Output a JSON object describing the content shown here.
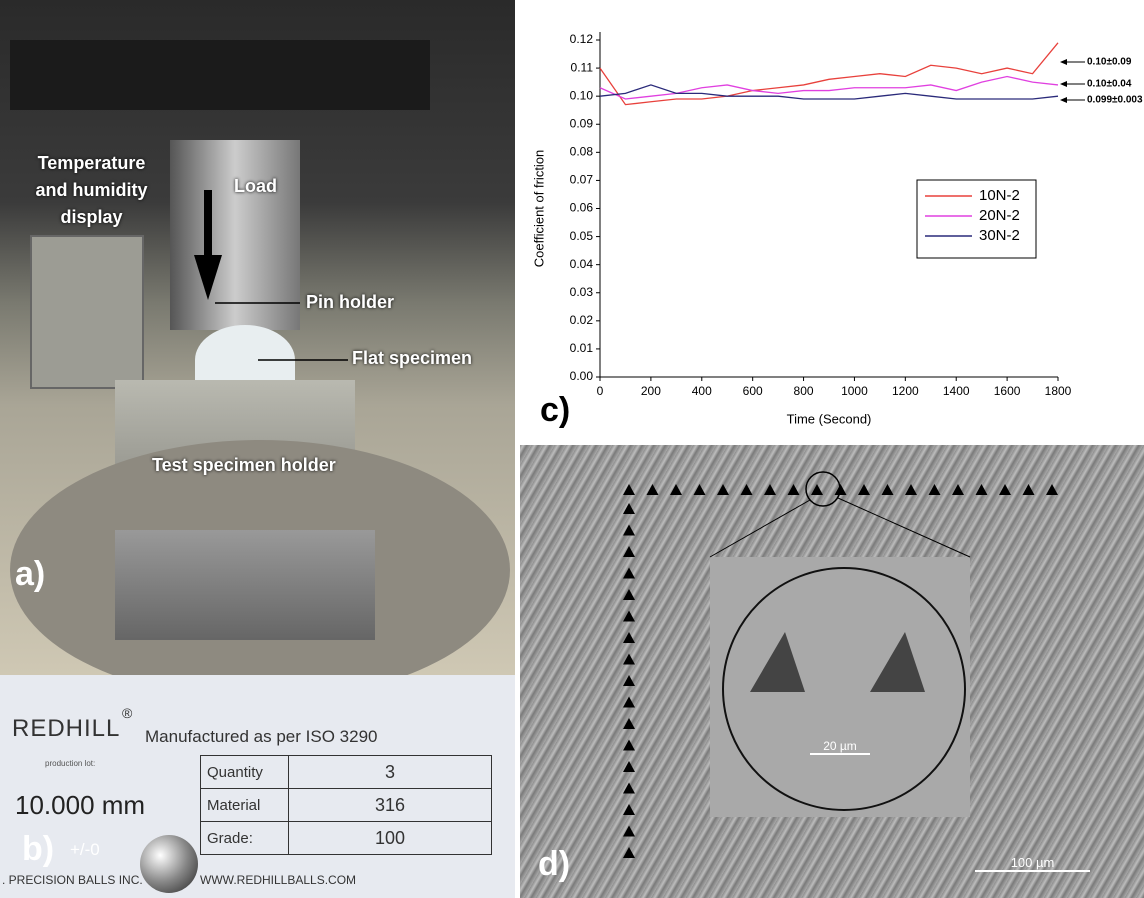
{
  "panel_a": {
    "label": "a)",
    "display_label": [
      "Temperature",
      "and humidity",
      "display"
    ],
    "load_label": "Load",
    "pin_label": "Pin holder",
    "flat_label": "Flat specimen",
    "holder_label": "Test specimen holder"
  },
  "panel_b": {
    "label": "b)",
    "brand": "REDHILL",
    "registered": "®",
    "subtitle": "Manufactured as per ISO 3290",
    "lot_label": "production lot:",
    "size": "10.000 mm",
    "tolerance": "+/-0",
    "table": {
      "rows": [
        [
          "Quantity",
          "3"
        ],
        [
          "Material",
          "316"
        ],
        [
          "Grade:",
          "100"
        ]
      ]
    },
    "footer_left": ". PRECISION BALLS INC.",
    "footer_right": "WWW.REDHILLBALLS.COM"
  },
  "panel_d": {
    "label": "d)",
    "inset_scale": "20 µm",
    "scale": "100 µm"
  },
  "chart_data": {
    "type": "line",
    "panel_label": "c)",
    "x_label": "Time (Second)",
    "y_label": "Coefficient of friction",
    "x": [
      0,
      100,
      200,
      300,
      400,
      500,
      600,
      700,
      800,
      900,
      1000,
      1100,
      1200,
      1300,
      1400,
      1500,
      1600,
      1700,
      1800
    ],
    "series": [
      {
        "name": "10N-2",
        "color": "#e8413c",
        "values": [
          0.11,
          0.097,
          0.098,
          0.099,
          0.099,
          0.1,
          0.102,
          0.103,
          0.104,
          0.106,
          0.107,
          0.108,
          0.107,
          0.111,
          0.11,
          0.108,
          0.11,
          0.108,
          0.119
        ]
      },
      {
        "name": "20N-2",
        "color": "#e040e0",
        "values": [
          0.103,
          0.099,
          0.1,
          0.101,
          0.103,
          0.104,
          0.102,
          0.101,
          0.102,
          0.102,
          0.103,
          0.103,
          0.103,
          0.104,
          0.102,
          0.105,
          0.107,
          0.105,
          0.104
        ]
      },
      {
        "name": "30N-2",
        "color": "#2a2a7a",
        "values": [
          0.1,
          0.101,
          0.104,
          0.101,
          0.101,
          0.1,
          0.1,
          0.1,
          0.099,
          0.099,
          0.099,
          0.1,
          0.101,
          0.1,
          0.099,
          0.099,
          0.099,
          0.099,
          0.1
        ]
      }
    ],
    "annotations": [
      "0.10±0.09",
      "0.10±0.04",
      "0.099±0.003"
    ],
    "xlim": [
      0,
      1800
    ],
    "xticks": [
      0,
      200,
      400,
      600,
      800,
      1000,
      1200,
      1400,
      1600,
      1800
    ],
    "ylim": [
      0,
      0.12
    ],
    "yticks": [
      {
        "value": 0,
        "label": "0.00"
      },
      0.01,
      0.02,
      0.03,
      0.04,
      0.05,
      0.06,
      0.07,
      0.08,
      0.09,
      {
        "value": 0.1,
        "label": "0.10"
      },
      0.11,
      0.12
    ],
    "legend": "right"
  }
}
